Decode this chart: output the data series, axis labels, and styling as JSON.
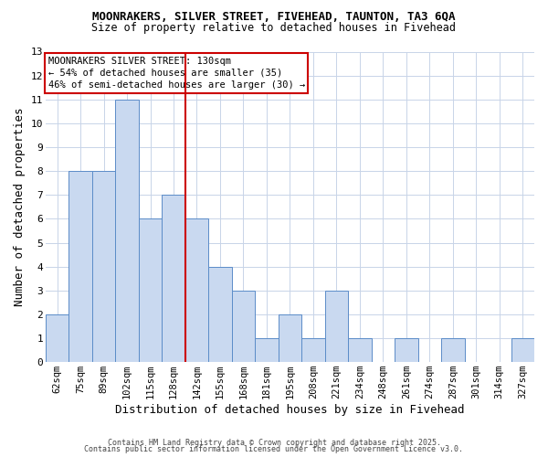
{
  "title1": "MOONRAKERS, SILVER STREET, FIVEHEAD, TAUNTON, TA3 6QA",
  "title2": "Size of property relative to detached houses in Fivehead",
  "xlabel": "Distribution of detached houses by size in Fivehead",
  "ylabel": "Number of detached properties",
  "categories": [
    "62sqm",
    "75sqm",
    "89sqm",
    "102sqm",
    "115sqm",
    "128sqm",
    "142sqm",
    "155sqm",
    "168sqm",
    "181sqm",
    "195sqm",
    "208sqm",
    "221sqm",
    "234sqm",
    "248sqm",
    "261sqm",
    "274sqm",
    "287sqm",
    "301sqm",
    "314sqm",
    "327sqm"
  ],
  "values": [
    2,
    8,
    8,
    11,
    6,
    7,
    6,
    4,
    3,
    1,
    2,
    1,
    3,
    1,
    0,
    1,
    0,
    1,
    0,
    0,
    1
  ],
  "bar_color": "#c9d9f0",
  "bar_edge_color": "#5b8cc8",
  "vline_x": 5.5,
  "vline_color": "#cc0000",
  "ylim": [
    0,
    13
  ],
  "yticks": [
    0,
    1,
    2,
    3,
    4,
    5,
    6,
    7,
    8,
    9,
    10,
    11,
    12,
    13
  ],
  "annotation_text": "MOONRAKERS SILVER STREET: 130sqm\n← 54% of detached houses are smaller (35)\n46% of semi-detached houses are larger (30) →",
  "annotation_box_color": "#ffffff",
  "annotation_box_edge": "#cc0000",
  "footer1": "Contains HM Land Registry data © Crown copyright and database right 2025.",
  "footer2": "Contains public sector information licensed under the Open Government Licence v3.0.",
  "bg_color": "#ffffff",
  "grid_color": "#c8d4e8"
}
